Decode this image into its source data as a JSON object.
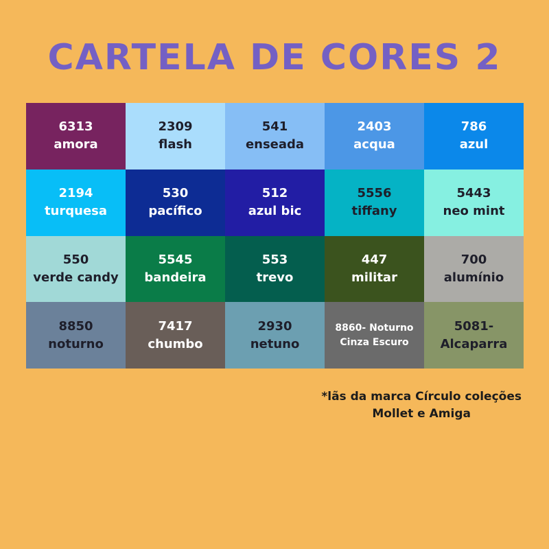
{
  "title": "CARTELA DE CORES 2",
  "colors": {
    "background": "#F5B85A",
    "title": "#7460C4"
  },
  "swatches": [
    {
      "line1": "6313",
      "line2": "amora",
      "color": "#77235F",
      "text_color": "light"
    },
    {
      "line1": "2309",
      "line2": "flash",
      "color": "#AADDFC",
      "text_color": "dark"
    },
    {
      "line1": "541",
      "line2": "enseada",
      "color": "#86BEF5",
      "text_color": "dark"
    },
    {
      "line1": "2403",
      "line2": "acqua",
      "color": "#4C97E6",
      "text_color": "light"
    },
    {
      "line1": "786",
      "line2": "azul",
      "color": "#0B88EA",
      "text_color": "light"
    },
    {
      "line1": "2194",
      "line2": "turquesa",
      "color": "#08BEF7",
      "text_color": "light"
    },
    {
      "line1": "530",
      "line2": "pacífico",
      "color": "#0D2C94",
      "text_color": "light"
    },
    {
      "line1": "512",
      "line2": "azul bic",
      "color": "#221DA4",
      "text_color": "light"
    },
    {
      "line1": "5556",
      "line2": "tiffany",
      "color": "#05B3C5",
      "text_color": "dark"
    },
    {
      "line1": "5443",
      "line2": "neo mint",
      "color": "#86F0E1",
      "text_color": "dark"
    },
    {
      "line1": "550",
      "line2": "verde candy",
      "color": "#A1D9D7",
      "text_color": "dark"
    },
    {
      "line1": "5545",
      "line2": "bandeira",
      "color": "#0A7C48",
      "text_color": "light"
    },
    {
      "line1": "553",
      "line2": "trevo",
      "color": "#045E4E",
      "text_color": "light"
    },
    {
      "line1": "447",
      "line2": "militar",
      "color": "#3B531E",
      "text_color": "light"
    },
    {
      "line1": "700",
      "line2": "alumínio",
      "color": "#ACABA7",
      "text_color": "dark"
    },
    {
      "line1": "8850",
      "line2": "noturno",
      "color": "#6B819A",
      "text_color": "dark"
    },
    {
      "line1": "7417",
      "line2": "chumbo",
      "color": "#695E58",
      "text_color": "light"
    },
    {
      "line1": "2930",
      "line2": "netuno",
      "color": "#6C9FB1",
      "text_color": "dark"
    },
    {
      "line1": "8860- Noturno",
      "line2": "Cinza Escuro",
      "color": "#6B6B6B",
      "text_color": "light",
      "small": true
    },
    {
      "line1": "5081-",
      "line2": "Alcaparra",
      "color": "#879567",
      "text_color": "dark"
    }
  ],
  "footnote": {
    "line1": "*lãs da marca Círculo coleções",
    "line2": "Mollet e Amiga"
  }
}
